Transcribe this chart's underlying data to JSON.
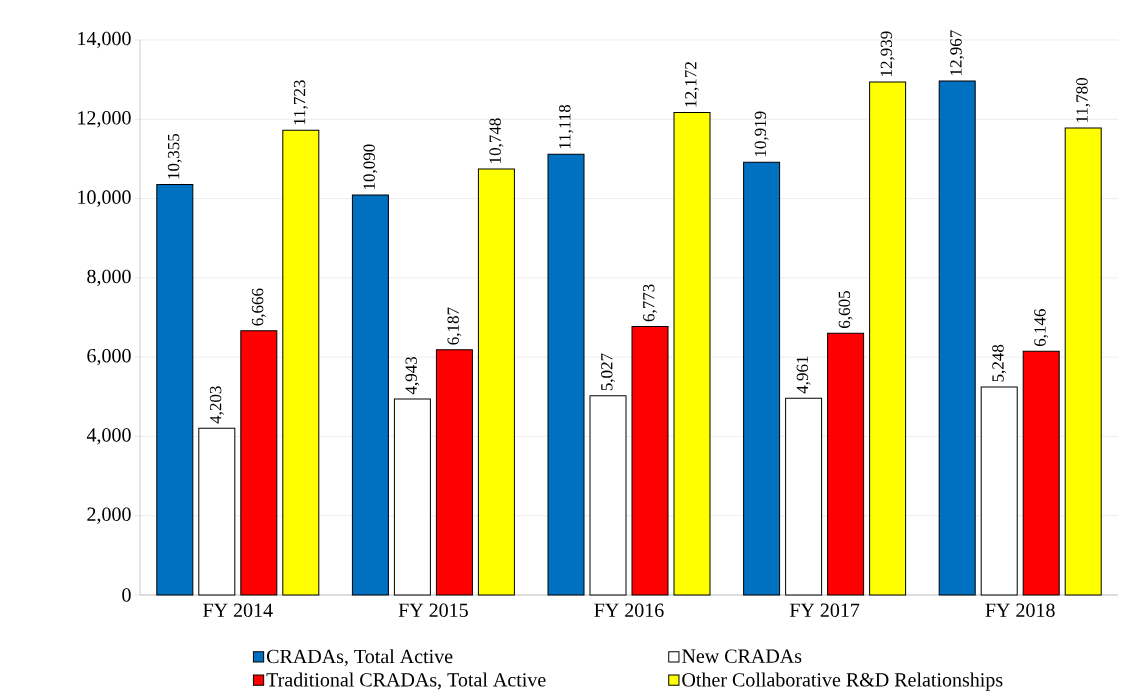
{
  "chart_data": {
    "type": "bar",
    "categories": [
      "FY 2014",
      "FY 2015",
      "FY 2016",
      "FY 2017",
      "FY 2018"
    ],
    "series": [
      {
        "name": "CRADAs, Total Active",
        "color": "#0070c0",
        "values": [
          10355,
          10090,
          11118,
          10919,
          12967
        ],
        "value_labels": [
          "10,355",
          "10,090",
          "11,118",
          "10,919",
          "12,967"
        ]
      },
      {
        "name": "New CRADAs",
        "color": "#ffffff",
        "values": [
          4203,
          4943,
          5027,
          4961,
          5248
        ],
        "value_labels": [
          "4,203",
          "4,943",
          "5,027",
          "4,961",
          "5,248"
        ]
      },
      {
        "name": "Traditional CRADAs, Total Active",
        "color": "#ff0000",
        "values": [
          6666,
          6187,
          6773,
          6605,
          6146
        ],
        "value_labels": [
          "6,666",
          "6,187",
          "6,773",
          "6,605",
          "6,146"
        ]
      },
      {
        "name": "Other Collaborative R&D Relationships",
        "color": "#ffff00",
        "values": [
          11723,
          10748,
          12172,
          12939,
          11780
        ],
        "value_labels": [
          "11,723",
          "10,748",
          "12,172",
          "12,939",
          "11,780"
        ]
      }
    ],
    "ylim": [
      0,
      14000
    ],
    "yticks": [
      {
        "value": 0,
        "label": "0"
      },
      {
        "value": 2000,
        "label": "2,000"
      },
      {
        "value": 4000,
        "label": "4,000"
      },
      {
        "value": 6000,
        "label": "6,000"
      },
      {
        "value": 8000,
        "label": "8,000"
      },
      {
        "value": 10000,
        "label": "10,000"
      },
      {
        "value": 12000,
        "label": "12,000"
      },
      {
        "value": 14000,
        "label": "14,000"
      }
    ],
    "grid": "y",
    "legend": "bottom"
  }
}
